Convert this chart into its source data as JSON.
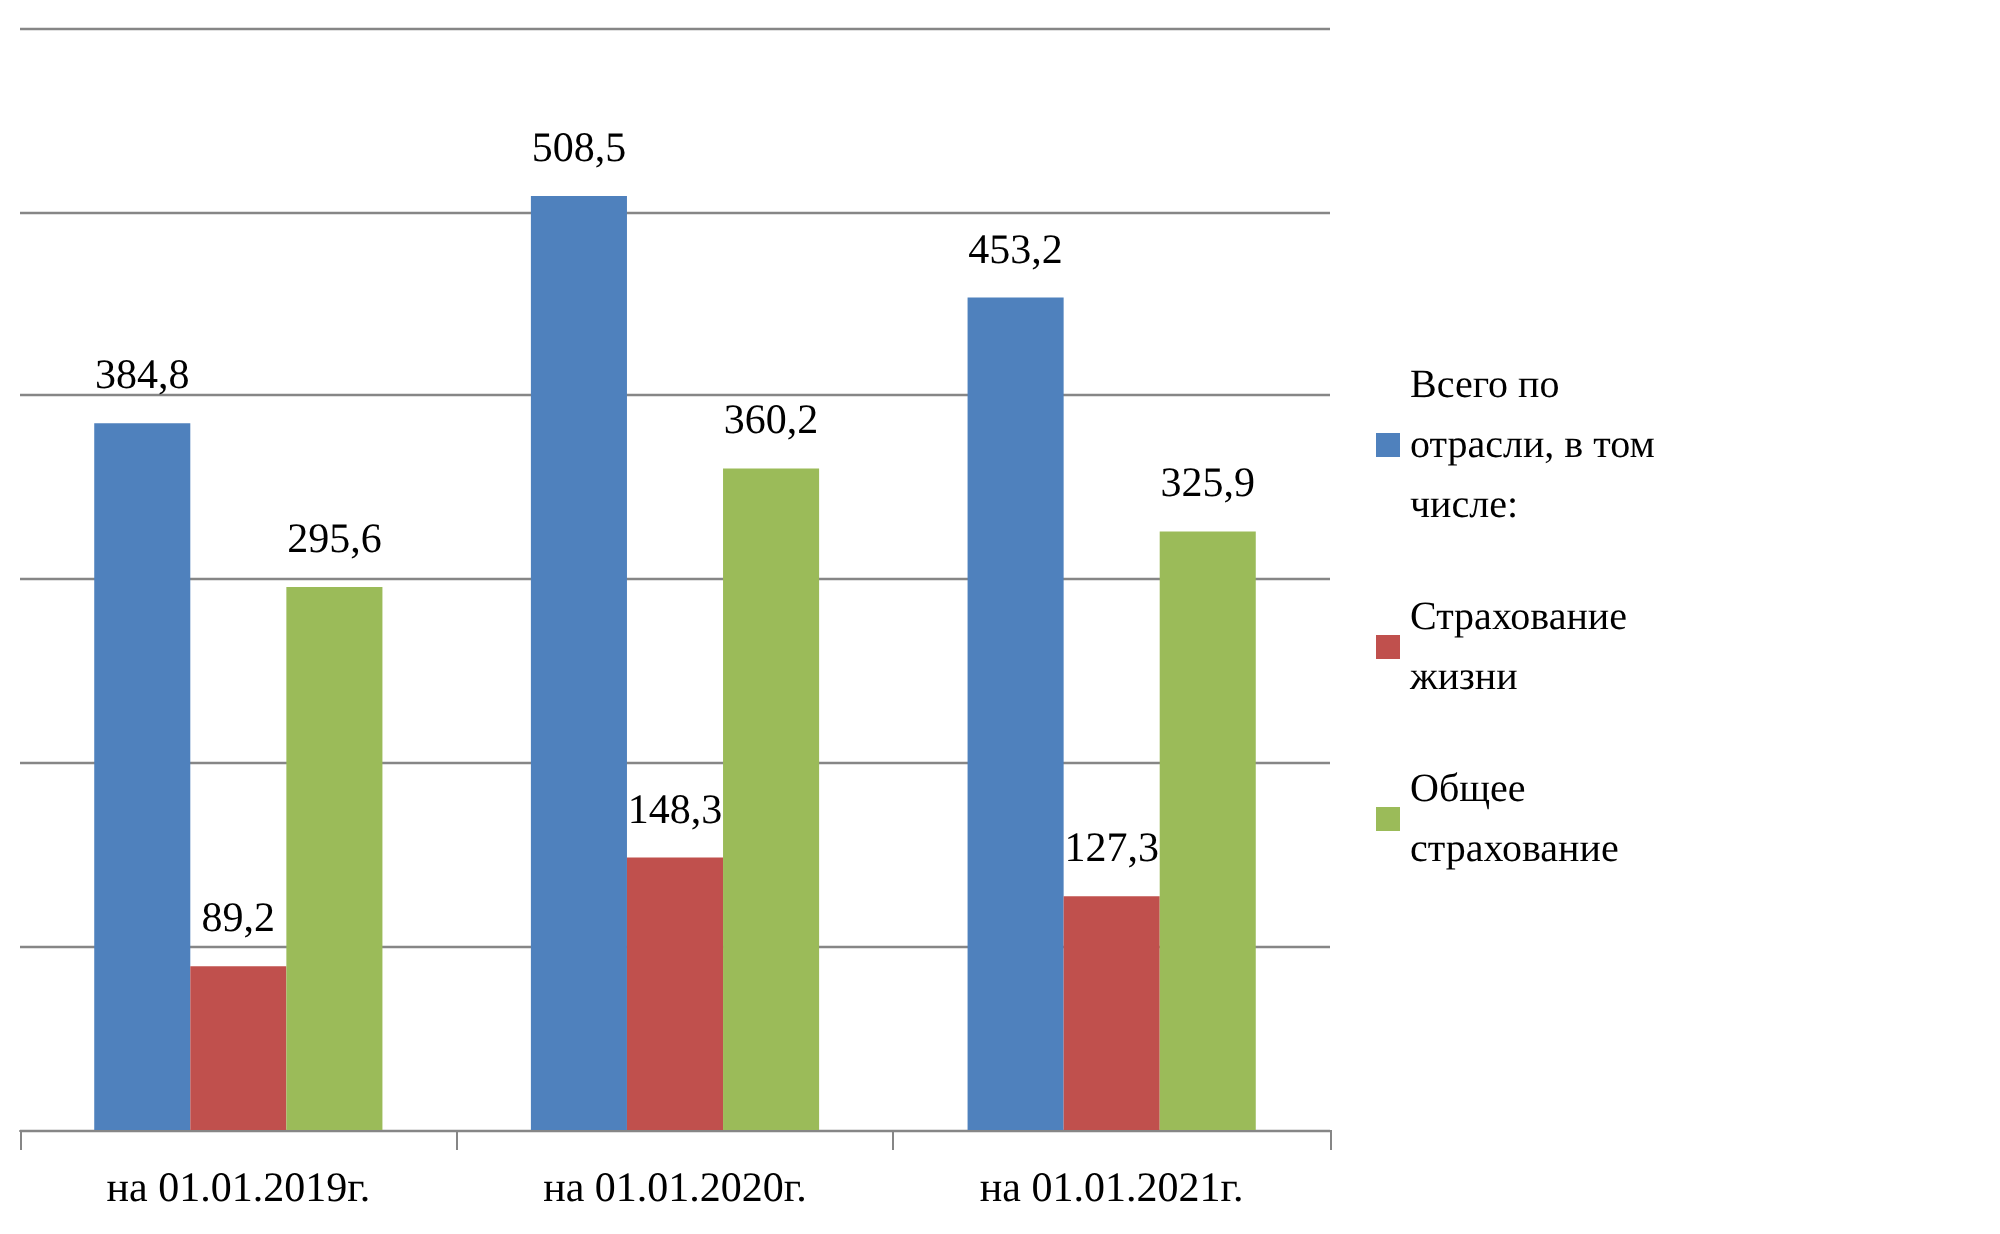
{
  "chart_data": {
    "type": "bar",
    "categories": [
      "на 01.01.2019г.",
      "на 01.01.2020г.",
      "на 01.01.2021г."
    ],
    "series": [
      {
        "name": "Всего по отрасли, в том числе:",
        "color": "#4f81bd",
        "values": [
          384.8,
          508.5,
          453.2
        ],
        "value_labels": [
          "384,8",
          "508,5",
          "453,2"
        ]
      },
      {
        "name": "Страхование жизни",
        "color": "#c0504d",
        "values": [
          89.2,
          148.3,
          127.3
        ],
        "value_labels": [
          "89,2",
          "148,3",
          "127,3"
        ]
      },
      {
        "name": "Общее страхование",
        "color": "#9bbb59",
        "values": [
          295.6,
          360.2,
          325.9
        ],
        "value_labels": [
          "295,6",
          "360,2",
          "325,9"
        ]
      }
    ],
    "tick_labels": "x",
    "grid": "y",
    "legend": "right"
  }
}
